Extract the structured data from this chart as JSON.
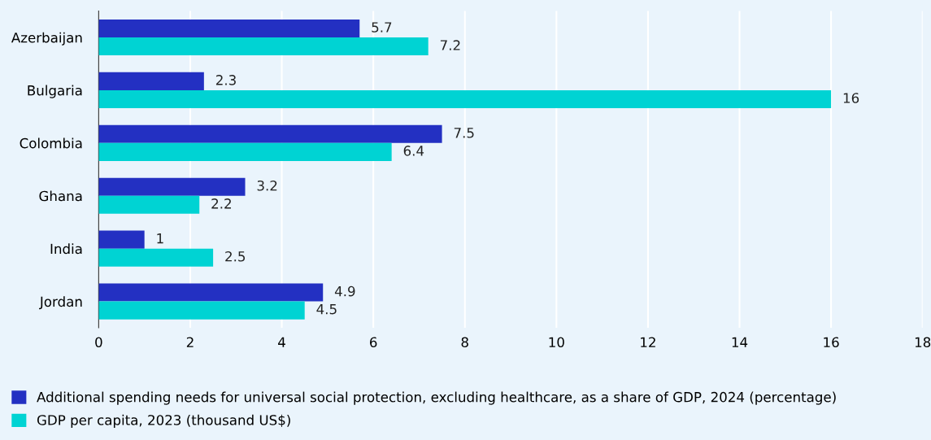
{
  "chart_data": {
    "type": "bar",
    "orientation": "horizontal",
    "categories": [
      "Azerbaijan",
      "Bulgaria",
      "Colombia",
      "Ghana",
      "India",
      "Jordan"
    ],
    "series": [
      {
        "name": "Additional spending needs for universal social protection, excluding healthcare, as a share of GDP, 2024 (percentage)",
        "color": "#2330c2",
        "values": [
          5.7,
          2.3,
          7.5,
          3.2,
          1,
          4.9
        ]
      },
      {
        "name": "GDP per capita, 2023 (thousand US$)",
        "color": "#00d3d3",
        "values": [
          7.2,
          16,
          6.4,
          2.2,
          2.5,
          4.5
        ]
      }
    ],
    "xlim": [
      0,
      18
    ],
    "xticks": [
      0,
      2,
      4,
      6,
      8,
      10,
      12,
      14,
      16,
      18
    ],
    "grid": "x",
    "legend": "bottom",
    "data_labels": true
  }
}
